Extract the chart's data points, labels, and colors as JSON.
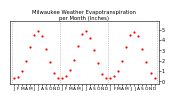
{
  "title": "Milwaukee Weather Evapotranspiration\nper Month (Inches)",
  "title_fontsize": 3.8,
  "dot_color": "red",
  "dot_size": 2.5,
  "background_color": "#ffffff",
  "ylabel_values": [
    "0",
    "1",
    "2",
    "3",
    "4",
    "5"
  ],
  "ytick_positions": [
    0,
    1,
    2,
    3,
    4,
    5
  ],
  "ylim": [
    -0.3,
    5.8
  ],
  "months_short": [
    "J",
    "",
    "C",
    "S",
    "",
    "",
    "P",
    "S",
    "",
    "",
    "",
    "D",
    "J",
    "",
    "C",
    "S",
    "",
    "",
    "P",
    "S",
    "",
    "",
    "",
    "D",
    "J",
    "",
    "C",
    "S",
    "",
    "",
    "P",
    "S",
    "",
    "",
    "",
    "S"
  ],
  "x_values": [
    0,
    1,
    2,
    3,
    4,
    5,
    6,
    7,
    8,
    9,
    10,
    11,
    12,
    13,
    14,
    15,
    16,
    17,
    18,
    19,
    20,
    21,
    22,
    23,
    24,
    25,
    26,
    27,
    28,
    29,
    30,
    31,
    32,
    33,
    34,
    35
  ],
  "et_values": [
    0.35,
    0.45,
    1.0,
    2.0,
    3.3,
    4.5,
    4.85,
    4.35,
    3.1,
    1.9,
    0.8,
    0.35,
    0.32,
    0.48,
    1.1,
    2.1,
    3.4,
    4.6,
    4.9,
    4.2,
    3.0,
    1.8,
    0.7,
    0.32,
    0.32,
    0.48,
    1.0,
    2.0,
    3.3,
    4.5,
    4.8,
    4.4,
    3.1,
    1.9,
    0.8,
    0.32
  ],
  "vline_positions": [
    -0.5,
    11.5,
    23.5,
    35.5
  ],
  "tick_label_fontsize": 3.2,
  "ylabel_fontsize": 3.5
}
